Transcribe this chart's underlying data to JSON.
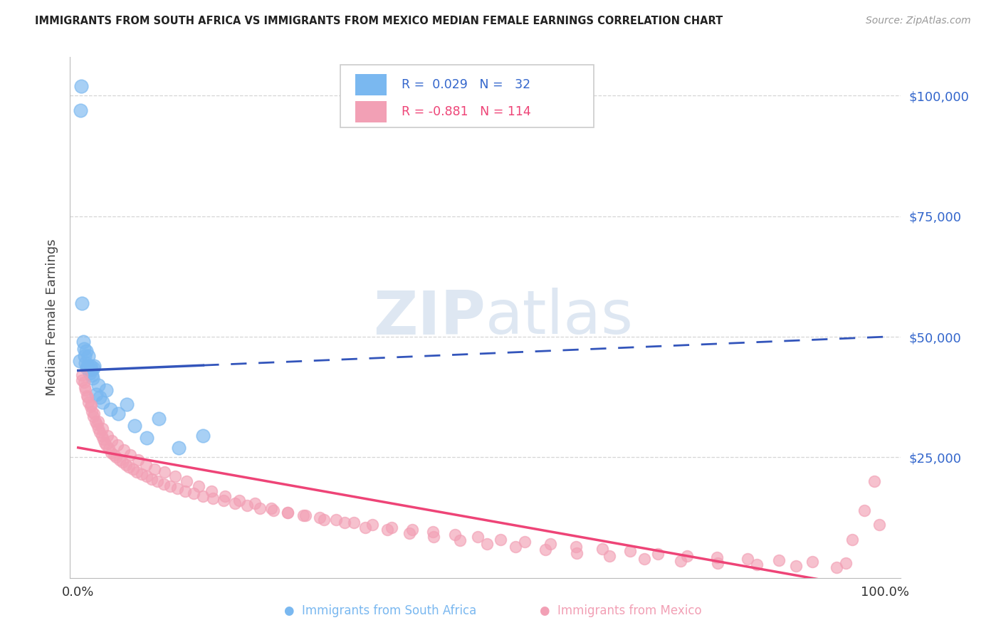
{
  "title": "IMMIGRANTS FROM SOUTH AFRICA VS IMMIGRANTS FROM MEXICO MEDIAN FEMALE EARNINGS CORRELATION CHART",
  "source": "Source: ZipAtlas.com",
  "ylabel": "Median Female Earnings",
  "ymin": 0,
  "ymax": 108000,
  "xmin": -0.01,
  "xmax": 1.02,
  "color_blue": "#7ab8f0",
  "color_pink": "#f2a0b5",
  "color_blue_line": "#3355bb",
  "color_pink_line": "#ee4477",
  "color_blue_text": "#3366cc",
  "color_axis_text": "#3366cc",
  "background": "#ffffff",
  "sa_x": [
    0.002,
    0.003,
    0.004,
    0.005,
    0.006,
    0.007,
    0.008,
    0.009,
    0.01,
    0.011,
    0.012,
    0.013,
    0.014,
    0.015,
    0.016,
    0.017,
    0.018,
    0.019,
    0.02,
    0.022,
    0.025,
    0.027,
    0.03,
    0.035,
    0.04,
    0.05,
    0.06,
    0.07,
    0.085,
    0.1,
    0.125,
    0.155
  ],
  "sa_y": [
    45000,
    97000,
    102000,
    57000,
    49000,
    47500,
    46000,
    44500,
    47000,
    43500,
    44000,
    46000,
    42500,
    44000,
    43200,
    42000,
    41500,
    43500,
    44000,
    38000,
    40000,
    37500,
    36500,
    39000,
    35000,
    34000,
    36000,
    31500,
    29000,
    33000,
    27000,
    29500
  ],
  "mex_x": [
    0.005,
    0.007,
    0.009,
    0.011,
    0.013,
    0.015,
    0.017,
    0.019,
    0.021,
    0.023,
    0.025,
    0.027,
    0.029,
    0.031,
    0.033,
    0.035,
    0.038,
    0.041,
    0.044,
    0.047,
    0.051,
    0.055,
    0.059,
    0.063,
    0.068,
    0.073,
    0.079,
    0.085,
    0.091,
    0.098,
    0.106,
    0.114,
    0.123,
    0.133,
    0.143,
    0.155,
    0.167,
    0.18,
    0.194,
    0.209,
    0.225,
    0.242,
    0.26,
    0.279,
    0.299,
    0.32,
    0.342,
    0.365,
    0.389,
    0.414,
    0.44,
    0.467,
    0.495,
    0.524,
    0.554,
    0.585,
    0.617,
    0.65,
    0.684,
    0.719,
    0.755,
    0.792,
    0.83,
    0.869,
    0.91,
    0.952,
    0.005,
    0.008,
    0.012,
    0.016,
    0.02,
    0.025,
    0.03,
    0.036,
    0.042,
    0.049,
    0.057,
    0.065,
    0.074,
    0.084,
    0.095,
    0.107,
    0.12,
    0.134,
    0.149,
    0.165,
    0.182,
    0.2,
    0.219,
    0.239,
    0.26,
    0.282,
    0.305,
    0.33,
    0.356,
    0.383,
    0.411,
    0.441,
    0.473,
    0.507,
    0.542,
    0.579,
    0.618,
    0.659,
    0.702,
    0.747,
    0.793,
    0.841,
    0.89,
    0.94,
    0.96,
    0.975,
    0.987,
    0.993
  ],
  "mex_y": [
    42000,
    40500,
    39000,
    37800,
    36500,
    35500,
    34500,
    33500,
    32500,
    31800,
    31000,
    30200,
    29500,
    28800,
    28000,
    27500,
    26800,
    26000,
    25500,
    25000,
    24500,
    24000,
    23500,
    23000,
    22500,
    22000,
    21500,
    21000,
    20500,
    20000,
    19500,
    19000,
    18500,
    18000,
    17500,
    17000,
    16500,
    16000,
    15500,
    15000,
    14500,
    14000,
    13500,
    13000,
    12500,
    12000,
    11500,
    11000,
    10500,
    10000,
    9500,
    9000,
    8500,
    8000,
    7500,
    7000,
    6500,
    6000,
    5500,
    5000,
    4600,
    4200,
    3900,
    3600,
    3300,
    3000,
    41000,
    39500,
    37500,
    35800,
    34000,
    32500,
    31000,
    29500,
    28500,
    27500,
    26500,
    25500,
    24500,
    23500,
    22500,
    22000,
    21000,
    20000,
    19000,
    18000,
    17000,
    16000,
    15500,
    14500,
    13500,
    13000,
    12000,
    11500,
    10500,
    10000,
    9200,
    8500,
    7800,
    7000,
    6500,
    5800,
    5200,
    4500,
    4000,
    3500,
    3100,
    2700,
    2500,
    2200,
    8000,
    14000,
    20000,
    11000
  ]
}
